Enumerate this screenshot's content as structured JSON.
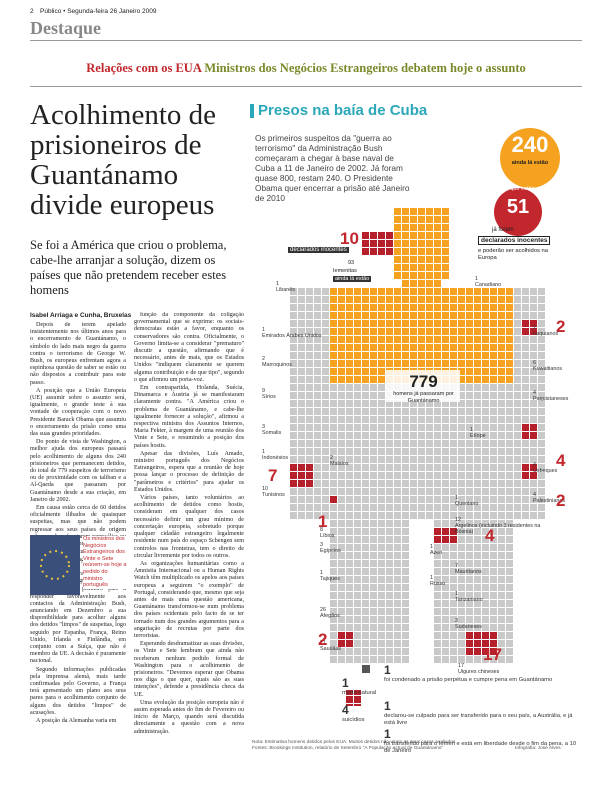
{
  "header": {
    "page": "2",
    "masthead": "Público • Segunda-feira 26 Janeiro 2009",
    "section": "Destaque"
  },
  "strap": {
    "kicker": "Relações com os EUA",
    "text": "Ministros dos Negócios Estrangeiros debatem hoje o assunto"
  },
  "article": {
    "title": "Acolhimento de prisioneiros de Guantánamo divide europeus",
    "lead": "Se foi a América que criou o problema, cabe-lhe arranjar a solução, dizem os países que não pretendem receber estes homens",
    "byline": "Isabel Arriaga e Cunha, Bruxelas",
    "col1": [
      "Depois de terem apelado insistentemente nos últimos anos para o encerramento de Guantánamo, o símbolo do lado mais negro da guerra contra o terrorismo de George W. Bush, os europeus enfrentam agora a espinhosa questão de saber se estão ou não dispostos a contribuir para este passo.",
      "A posição que a União Europeia (UE) assumir sobre o assunto será, igualmente, o grande teste à sua vontade de cooperação com o novo Presidente Barack Obama que assumiu o encerramento da prisão como uma das suas grandes prioridades.",
      "Do ponto de vista de Washington, a melhor ajuda dos europeus passará pelo acolhimento de alguns dos 240 prisioneiros que permanecem detidos, do total de 779 suspeitos de terrorismo ou de proximidade com os taliban e a Al-Qaeda que passaram por Guantánamo desde a sua criação, em Janeiro de 2002.",
      "Em causa estão cerca de 60 detidos oficialmente ilibados de quaisquer suspeitas, mas que não podem regressar aos seus países de origem sob pena de enfrentarem represálias ou mesmo a pena de morte.",
      "A pedido de Portugal, os ministros dos Negócios Estrangeiros dos Vinte e Sete vão hoje debater esta possibilidade, embora as suas posições não devam permitir grandes avanços.",
      "Portugal foi o primeiro país a responder favoravelmente aos contactos da Administração Bush, anunciando em Dezembro a sua disponibilidade para acolher alguns dos detidos \"limpos\" de suspeitas, logo seguido por Espanha, França, Reino Unido, Irlanda e Finlândia, em conjunto com a Suíça, que não é membro da UE. A decisão é puramente nacional.",
      "Segundo informações publicadas pela imprensa alemã, mais tarde confirmadas pelo Governo, a França terá apresentado um plano aos seus pares para o acolhimento conjunto de alguns dos detidos \"limpos\" de acusações.",
      "A posição da Alemanha varia em"
    ],
    "photo_caption": "Os ministros dos Negócios Estrangeiros dos Vinte e Sete reúnem-se hoje a pedido do ministro português",
    "col2": [
      "função da componente da coligação governamental que se exprime: os sociais-democratas estão a favor, enquanto os conservadores são contra. Oficialmente, o Governo limita-se a considerar \"prematuro\" discutir a questão, afirmando que é necessário, antes de mais, que os Estados Unidos \"indiquem claramente se querem alguma contribuição e de que tipo\", segundo o que afirmou um porta-voz.",
      "Em contrapartida, Holanda, Suécia, Dinamarca e Áustria já se manifestaram claramente contra. \"A América criou o problema de Guantánamo, e cabe-lhe igualmente fornecer a solução\", afirmou a respectiva ministra dos Assuntos Internos, Maria Fekter, à margem de uma reunião dos Vinte e Sete, e resumindo a posição dos países hostis.",
      "Apesar das divisões, Luís Amado, ministro português dos Negócios Estrangeiros, espera que a reunião de hoje possa lançar o processo de definição de \"parâmetros e critérios\" para ajudar os Estados Unidos.",
      "Vários países, tanto voluntários ao acolhimento de detidos como hostis, consideram em qualquer dos casos necessário definir um grau mínimo de concertação europeia, sobretudo porque qualquer cidadão estrangeiro legalmente residente num país do espaço Schengen sem controlos nas fronteiras, tem o direito de circular livremente por todos os outros.",
      "As organizações humanitárias como a Amnistia Internacional ou a Human Rights Watch têm multiplicado os apelos aos países europeus a seguirem \"o exemplo\" de Portugal, considerando que, mesmo que seja antes de mais uma questão americana, Guantánamo transformou-se num problema dos países ocidentais pelo facto de se ter tornado num dos grandes argumentos para a angariação de recrutas por parte dos terroristas.",
      "Esperando desdramatizar as suas divisões, os Vinte e Sete lembram que ainda não receberam nenhum pedido formal de Washington para o acolhimento de prisioneiros. \"Devemos esperar que Obama nos diga o que quer, quais são as suas intenções\", defende a presidência checa da UE.",
      "Uma evolução da posição europeia não é assim esperada antes do fim de Fevereiro ou início de Março, quando será discutida directamente a questão com a nova administração."
    ]
  },
  "graphic": {
    "title": "Presos na baía de Cuba",
    "intro": "Os primeiros suspeitos da \"guerra ao terrorismo\" da Administração Bush começaram a chegar à base naval de Cuba a 11 de Janeiro de 2002. Já foram quase 800, restam 240. O Presidente Obama quer encerrar a prisão até Janeiro de 2010",
    "remaining": 240,
    "remaining_label": "ainda lá estão",
    "of_those": "dos que estão,",
    "innocent": 51,
    "innocent_pre": "já foram",
    "innocent_label": "declarados inocentes",
    "innocent_post": "e poderão ser acolhidos na Europa",
    "total": 779,
    "total_label": "homens já passaram por Guantánamo",
    "yemen_innocent": 10,
    "yemen_innocent_label": "declarados inocentes",
    "yemen": 93,
    "yemen_name": "Iemenitas",
    "yemen_label": "ainda lá estão",
    "countries": [
      {
        "n": 1,
        "name": "Libanês"
      },
      {
        "n": 1,
        "name": "Emirados Árabes Unidos"
      },
      {
        "n": 2,
        "name": "Marroquinos"
      },
      {
        "n": 9,
        "name": "Sírios"
      },
      {
        "n": 3,
        "name": "Somalis"
      },
      {
        "n": 1,
        "name": "Indonésios"
      },
      {
        "n": 10,
        "name": "Tunisinos",
        "hi": 7
      },
      {
        "n": 8,
        "name": "Líbios",
        "hi": 1
      },
      {
        "n": 3,
        "name": "Egípcios"
      },
      {
        "n": 1,
        "name": "Tajiques"
      },
      {
        "n": 26,
        "name": "Afegãos"
      },
      {
        "n": 21,
        "name": "Sauditas",
        "hi": 2
      },
      {
        "n": 2,
        "name": "Malaios"
      },
      {
        "n": 1,
        "name": "Azeri"
      },
      {
        "n": 1,
        "name": "Russo"
      },
      {
        "n": 1,
        "name": "Canadiano"
      },
      {
        "n": 2,
        "name": "Iraquianos",
        "hi": 2
      },
      {
        "n": 6,
        "name": "Kuwaitianos"
      },
      {
        "n": 4,
        "name": "Paquistaneses"
      },
      {
        "n": 1,
        "name": "Etíope"
      },
      {
        "n": 4,
        "name": "Usbeques",
        "hi": 4
      },
      {
        "n": 4,
        "name": "Palestinianos",
        "hi": 2
      },
      {
        "n": 1,
        "name": "Queniano"
      },
      {
        "n": 12,
        "name": "Argelinos (incluindo 3 residentes na Bósnia)",
        "hi": 4
      },
      {
        "n": 7,
        "name": "Mauritanos"
      },
      {
        "n": 1,
        "name": "Tanzaniano"
      },
      {
        "n": 3,
        "name": "Sudaneses"
      },
      {
        "n": 17,
        "name": "Uigures chineses",
        "hi": 17
      }
    ],
    "outcomes": [
      {
        "n": 1,
        "text": "morte natural"
      },
      {
        "n": 1,
        "text": "foi condenado a prisão perpétua e cumpre pena em Guantánamo"
      },
      {
        "n": 4,
        "text": "suicídios"
      },
      {
        "n": 1,
        "text": "declarou-se culpado para ser transferido para o seu país, a Austrália, e já está livre"
      },
      {
        "n": 1,
        "text": "foi transferido para o Iémen e está em liberdade desde o fim da pena, a 10 de Janeiro"
      }
    ],
    "note": "Nota: Estimativa homens detidos pelos EUA. Muitos detidos não viram os seus casos avaliados",
    "sources": "Fontes: Brookings Institution, relatório de Setembro \"A População Actual de Guantánamo\"",
    "credit": "Infografia: José Alves"
  }
}
